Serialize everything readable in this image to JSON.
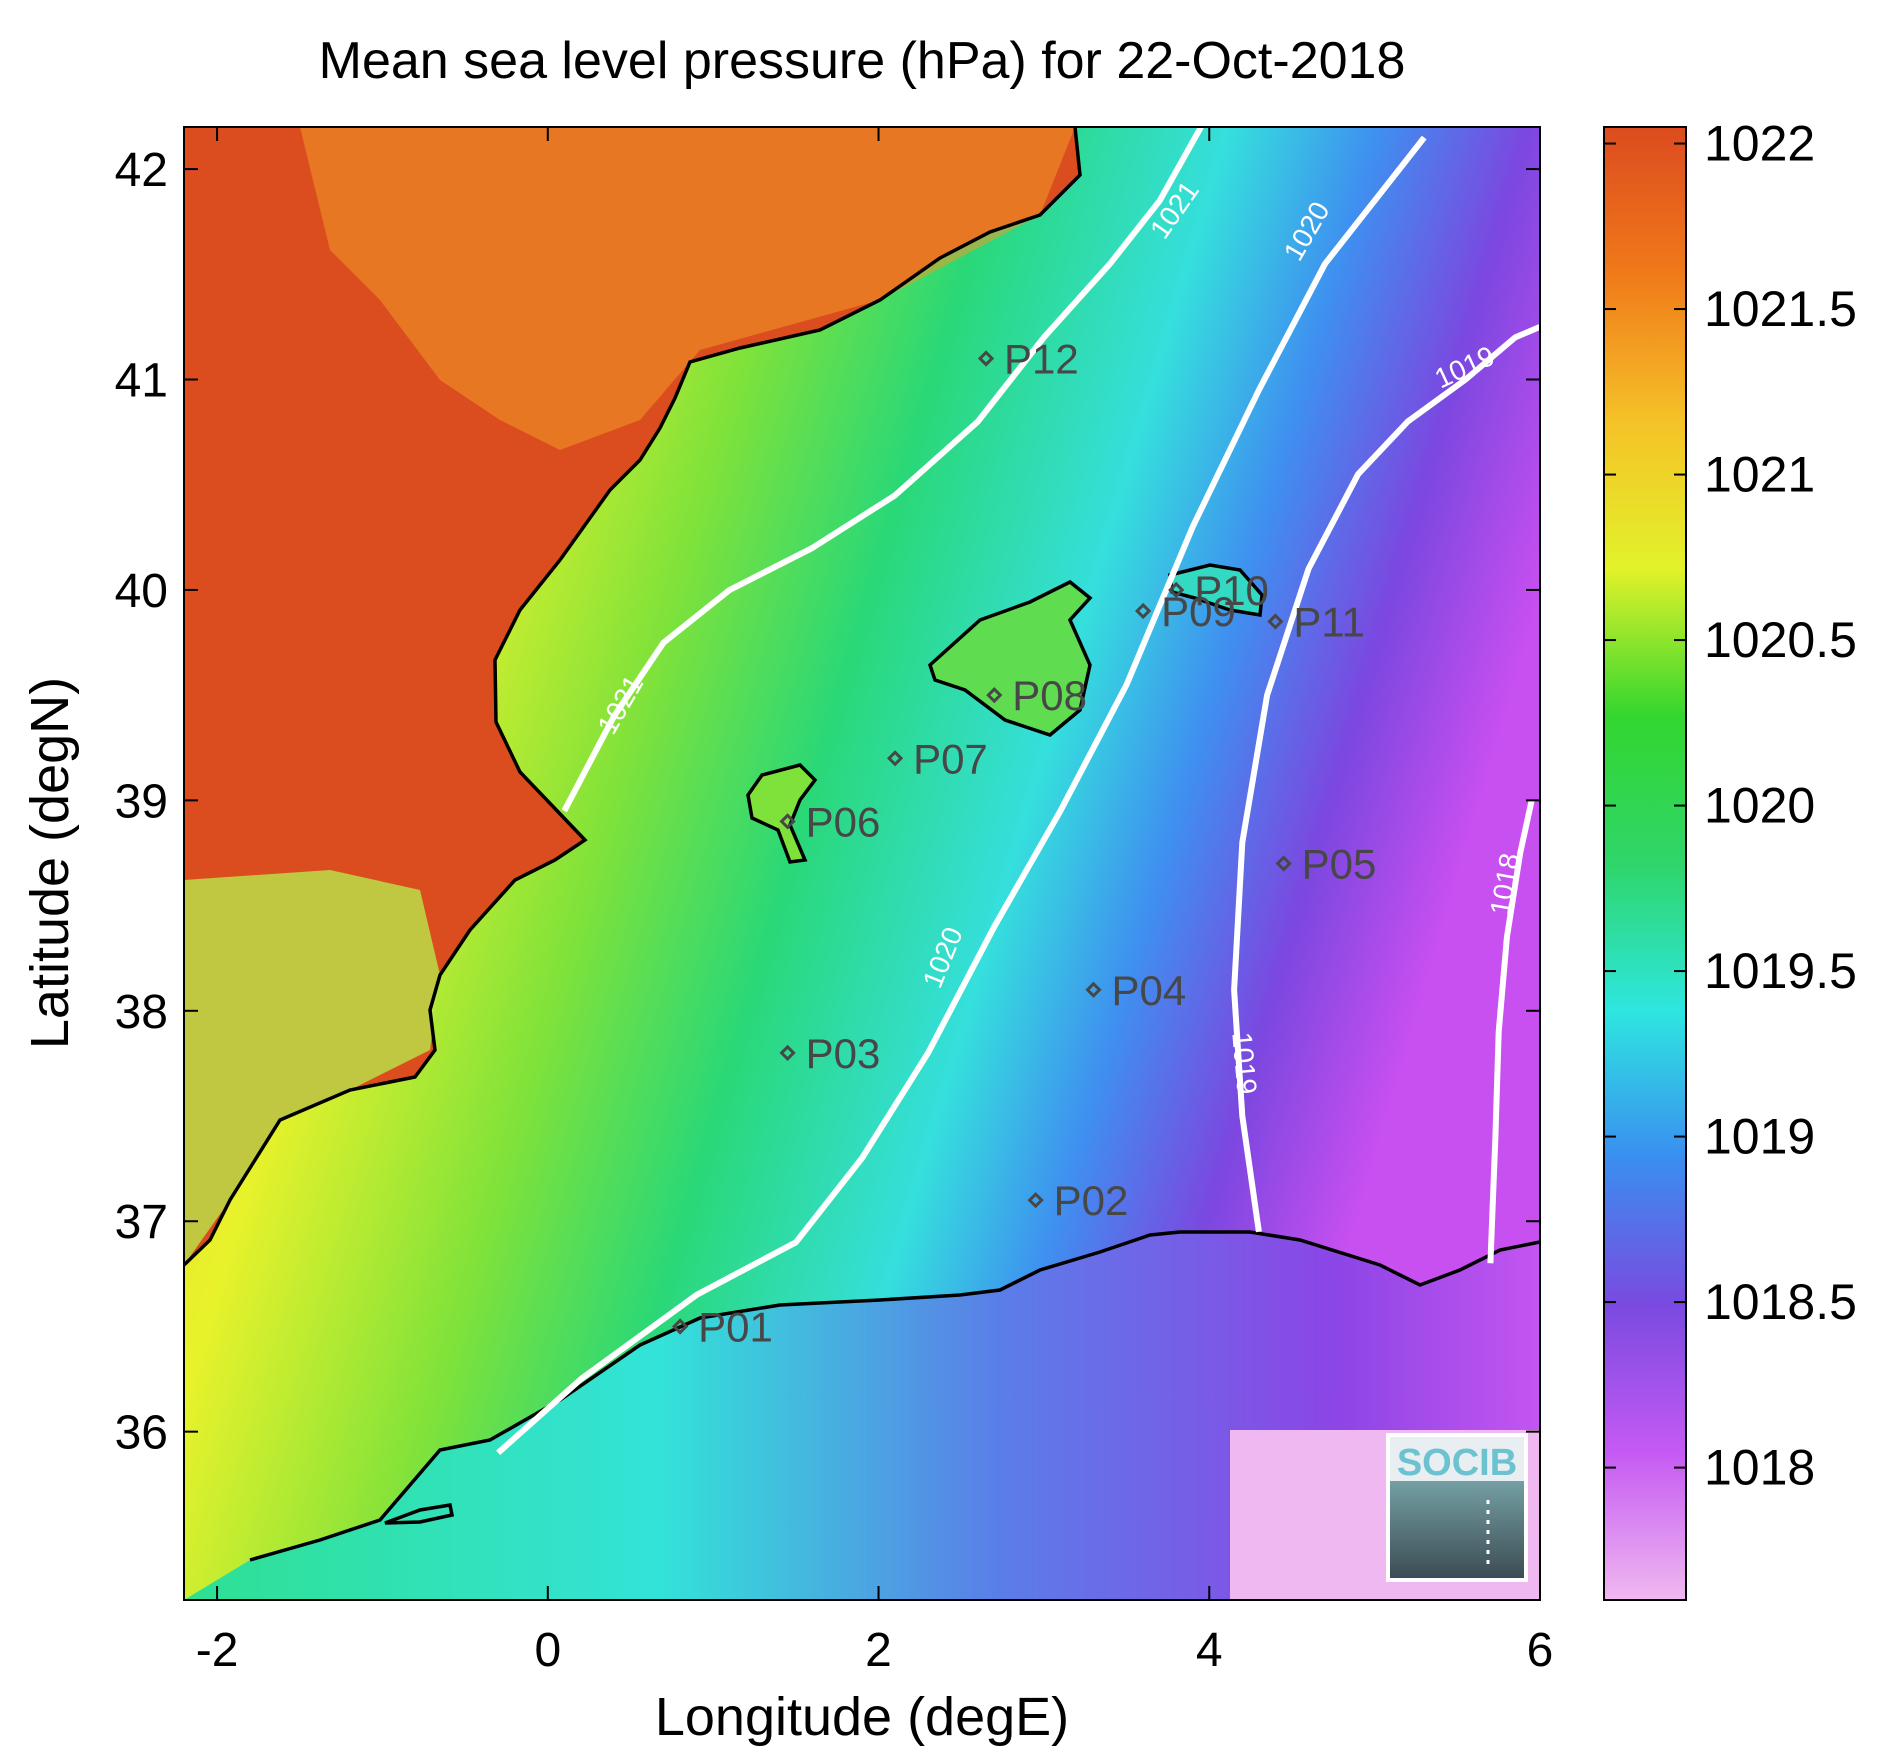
{
  "title": "Mean sea level pressure (hPa) for 22-Oct-2018",
  "xlabel": "Longitude (degE)",
  "ylabel": "Latitude (degN)",
  "logo": "SOCIB",
  "chart_data": {
    "type": "heatmap",
    "variable": "Mean sea level pressure",
    "units": "hPa",
    "date": "22-Oct-2018",
    "xlim": [
      -2.2,
      6.0
    ],
    "ylim": [
      35.2,
      42.2
    ],
    "x_ticks": [
      -2,
      0,
      2,
      4,
      6
    ],
    "x_tick_labels": [
      "-2",
      "0",
      "2",
      "4",
      "6"
    ],
    "y_ticks": [
      36,
      37,
      38,
      39,
      40,
      41,
      42
    ],
    "y_tick_labels": [
      "36",
      "37",
      "38",
      "39",
      "40",
      "41",
      "42"
    ],
    "colorbar": {
      "range": [
        1017.6,
        1022.05
      ],
      "ticks": [
        1018,
        1018.5,
        1019,
        1019.5,
        1020,
        1020.5,
        1021,
        1021.5,
        1022
      ],
      "tick_labels": [
        "1018",
        "1018.5",
        "1019",
        "1019.5",
        "1020",
        "1020.5",
        "1021",
        "1021.5",
        "1022"
      ],
      "colormap": [
        "#f0b8f0",
        "#c55af3",
        "#7a4ae0",
        "#3a8ef0",
        "#2ee6e0",
        "#2fd66a",
        "#33d62f",
        "#e2f22a",
        "#f5c228",
        "#f07a1a",
        "#dc4b1f"
      ]
    },
    "contours": [
      {
        "level": 1021,
        "label": "1021",
        "lon": [
          0.1,
          0.4,
          0.7,
          1.1,
          1.6,
          2.1,
          2.6,
          3.0,
          3.4,
          3.7,
          3.95
        ],
        "lat": [
          38.95,
          39.4,
          39.75,
          40.0,
          40.2,
          40.45,
          40.8,
          41.2,
          41.55,
          41.85,
          42.2
        ]
      },
      {
        "level": 1020,
        "label": "1020",
        "lon": [
          -0.3,
          0.2,
          0.9,
          1.5,
          1.9,
          2.3,
          2.7,
          3.1,
          3.5,
          3.9,
          4.3,
          4.7,
          5.1,
          5.3
        ],
        "lat": [
          35.9,
          36.25,
          36.65,
          36.9,
          37.3,
          37.8,
          38.4,
          38.95,
          39.55,
          40.3,
          40.95,
          41.55,
          41.95,
          42.15
        ]
      },
      {
        "level": 1019,
        "label": "1019",
        "lon": [
          4.3,
          4.2,
          4.15,
          4.2,
          4.35,
          4.6,
          4.9,
          5.2,
          5.55,
          5.85,
          6.0
        ],
        "lat": [
          36.95,
          37.5,
          38.1,
          38.8,
          39.5,
          40.1,
          40.55,
          40.8,
          41.0,
          41.2,
          41.25
        ]
      },
      {
        "level": 1018,
        "label": "1018",
        "lon": [
          5.7,
          5.73,
          5.75,
          5.8,
          5.88,
          5.95
        ],
        "lat": [
          36.8,
          37.4,
          37.9,
          38.35,
          38.75,
          39.0
        ]
      }
    ],
    "contour_labels": [
      {
        "text": "1021",
        "lon": 0.45,
        "lat": 39.45,
        "angle": -60
      },
      {
        "text": "1021",
        "lon": 3.8,
        "lat": 41.8,
        "angle": -55
      },
      {
        "text": "1020",
        "lon": 2.4,
        "lat": 38.25,
        "angle": -68
      },
      {
        "text": "1020",
        "lon": 4.6,
        "lat": 41.7,
        "angle": -60
      },
      {
        "text": "1019",
        "lon": 4.2,
        "lat": 37.75,
        "angle": 85
      },
      {
        "text": "1019",
        "lon": 5.55,
        "lat": 41.05,
        "angle": -25
      },
      {
        "text": "1018",
        "lon": 5.8,
        "lat": 38.6,
        "angle": -80
      }
    ],
    "stations": [
      {
        "name": "P01",
        "lon": 0.8,
        "lat": 36.5
      },
      {
        "name": "P02",
        "lon": 2.95,
        "lat": 37.1
      },
      {
        "name": "P03",
        "lon": 1.45,
        "lat": 37.8
      },
      {
        "name": "P04",
        "lon": 3.3,
        "lat": 38.1
      },
      {
        "name": "P05",
        "lon": 4.45,
        "lat": 38.7
      },
      {
        "name": "P06",
        "lon": 1.45,
        "lat": 38.9
      },
      {
        "name": "P07",
        "lon": 2.1,
        "lat": 39.2
      },
      {
        "name": "P08",
        "lon": 2.7,
        "lat": 39.5
      },
      {
        "name": "P09",
        "lon": 3.6,
        "lat": 39.9
      },
      {
        "name": "P10",
        "lon": 3.8,
        "lat": 40.0
      },
      {
        "name": "P11",
        "lon": 4.4,
        "lat": 39.85
      },
      {
        "name": "P12",
        "lon": 2.65,
        "lat": 41.1
      }
    ]
  }
}
